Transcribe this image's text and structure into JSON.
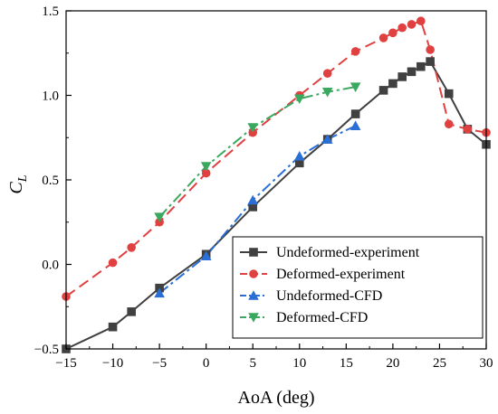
{
  "chart_data": {
    "type": "line",
    "title": "",
    "xlabel": "AoA (deg)",
    "ylabel_main": "C",
    "ylabel_sub": "L",
    "xlim": [
      -15,
      30
    ],
    "ylim": [
      -0.5,
      1.5
    ],
    "xticks": [
      -15,
      -10,
      -5,
      0,
      5,
      10,
      15,
      20,
      25,
      30
    ],
    "yticks": [
      -0.5,
      0.0,
      0.5,
      1.0,
      1.5
    ],
    "xtick_labels": [
      "−15",
      "−10",
      "−5",
      "0",
      "5",
      "10",
      "15",
      "20",
      "25",
      "30"
    ],
    "ytick_labels": [
      "−0.5",
      "0.0",
      "0.5",
      "1.0",
      "1.5"
    ],
    "grid": false,
    "legend_position": "bottom-right",
    "series": [
      {
        "name": "Undeformed-experiment",
        "color": "#404040",
        "marker": "square",
        "dash": "solid",
        "x": [
          -15,
          -10,
          -8,
          -5,
          0,
          5,
          10,
          13,
          16,
          19,
          20,
          21,
          22,
          23,
          24,
          26,
          28,
          30
        ],
        "y": [
          -0.5,
          -0.37,
          -0.28,
          -0.14,
          0.06,
          0.34,
          0.6,
          0.74,
          0.89,
          1.03,
          1.07,
          1.11,
          1.14,
          1.17,
          1.2,
          1.01,
          0.8,
          0.71
        ]
      },
      {
        "name": "Deformed-experiment",
        "color": "#e04040",
        "marker": "circle",
        "dash": "dash",
        "x": [
          -15,
          -10,
          -8,
          -5,
          0,
          5,
          10,
          13,
          16,
          19,
          20,
          21,
          22,
          23,
          24,
          26,
          28,
          30
        ],
        "y": [
          -0.19,
          0.01,
          0.1,
          0.25,
          0.54,
          0.78,
          1.0,
          1.13,
          1.26,
          1.34,
          1.37,
          1.4,
          1.42,
          1.44,
          1.27,
          0.83,
          0.8,
          0.78
        ]
      },
      {
        "name": "Undeformed-CFD",
        "color": "#2a6fd6",
        "marker": "triangle-up",
        "dash": "dashdot",
        "x": [
          -5,
          0,
          5,
          10,
          13,
          16
        ],
        "y": [
          -0.17,
          0.05,
          0.38,
          0.64,
          0.74,
          0.82
        ]
      },
      {
        "name": "Deformed-CFD",
        "color": "#3aa85f",
        "marker": "triangle-down",
        "dash": "dashdot",
        "x": [
          -5,
          0,
          5,
          10,
          13,
          16
        ],
        "y": [
          0.28,
          0.58,
          0.81,
          0.98,
          1.02,
          1.05
        ]
      }
    ]
  }
}
